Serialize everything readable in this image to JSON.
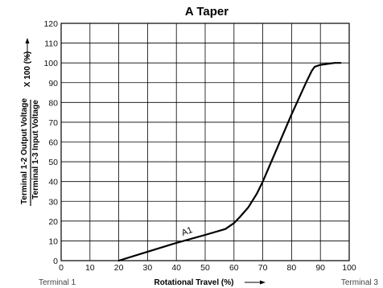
{
  "chart_data": {
    "type": "line",
    "title": "A Taper",
    "xlabel": "Rotational Travel (%)",
    "ylabel_upper": "Terminal 1-2 Output Voltage",
    "ylabel_lower": "Terminal 1-3 Input Voltage",
    "ylabel_suffix": "X 100 (%)",
    "xlim": [
      0,
      100
    ],
    "ylim": [
      0,
      120
    ],
    "x_ticks": [
      0,
      10,
      20,
      30,
      40,
      50,
      60,
      70,
      80,
      90,
      100
    ],
    "y_ticks": [
      0,
      10,
      20,
      30,
      40,
      50,
      60,
      70,
      80,
      90,
      100,
      110,
      120
    ],
    "grid": true,
    "terminal_left": "Terminal 1",
    "terminal_right": "Terminal 3",
    "series": [
      {
        "name": "A1",
        "x": [
          20,
          30,
          40,
          50,
          57,
          60,
          62,
          65,
          68,
          70,
          75,
          80,
          85,
          87,
          88,
          90,
          95,
          97
        ],
        "y": [
          0,
          4.5,
          9,
          13,
          16,
          19,
          22,
          27,
          34,
          40,
          57,
          74,
          90,
          96,
          98,
          99,
          100,
          100
        ]
      }
    ]
  }
}
